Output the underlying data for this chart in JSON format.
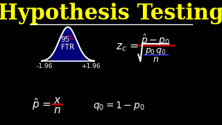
{
  "background_color": "#000000",
  "title": "Hypothesis Testing",
  "title_color": "#ffff00",
  "title_fontsize": 22,
  "separator_color": "#ffffff",
  "bell_color": "#ffffff",
  "fill_color": "#0000cc",
  "fill_alpha": 0.6,
  "left_tick": "-1.96",
  "right_tick": "+1.96",
  "tick_color": "#ffffff",
  "pct_color": "#ffffff",
  "pct_sign_color": "#ff0000",
  "ftr_color": "#ffffff",
  "formula_color": "#ffffff",
  "red_line_color": "#cc0000",
  "blue_line_color": "#3333cc"
}
